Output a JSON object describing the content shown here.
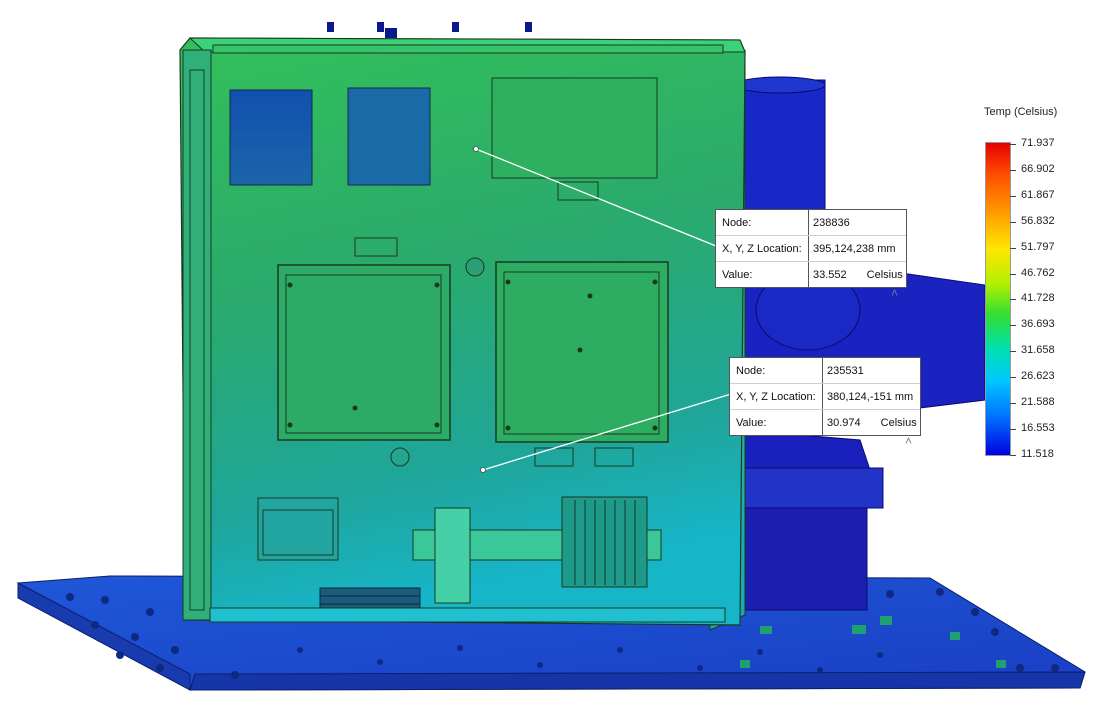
{
  "legend": {
    "title": "Temp (Celsius)",
    "ticks": [
      "71.937",
      "66.902",
      "61.867",
      "56.832",
      "51.797",
      "46.762",
      "41.728",
      "36.693",
      "31.658",
      "26.623",
      "21.588",
      "16.553",
      "11.518"
    ]
  },
  "probes": [
    {
      "node_label": "Node:",
      "node": "238836",
      "loc_label": "X, Y, Z Location:",
      "location": "395,124,238 mm",
      "value_label": "Value:",
      "value": "33.552",
      "unit": "Celsius"
    },
    {
      "node_label": "Node:",
      "node": "235531",
      "loc_label": "X, Y, Z Location:",
      "location": "380,124,-151 mm",
      "value_label": "Value:",
      "value": "30.974",
      "unit": "Celsius"
    }
  ],
  "icons": {
    "caret": "chevron-up-icon"
  },
  "colors": {
    "hot": "#e60000",
    "cold": "#0000e0",
    "enclosure": "#2fb87a"
  }
}
